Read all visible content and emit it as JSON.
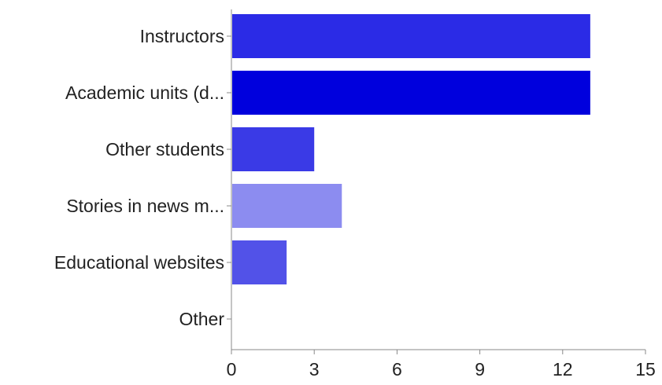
{
  "chart_data": {
    "type": "bar",
    "orientation": "horizontal",
    "title": "",
    "xlabel": "",
    "ylabel": "",
    "categories": [
      "Instructors",
      "Academic units (d...",
      "Other students",
      "Stories in news m...",
      "Educational websites",
      "Other"
    ],
    "values": [
      13,
      13,
      3,
      4,
      2,
      0
    ],
    "bar_colors": [
      "#2b2be6",
      "#0000dd",
      "#3a3ae6",
      "#8c8cf0",
      "#5252e8",
      "#2b2be6"
    ],
    "xlim": [
      0,
      15
    ],
    "x_ticks": [
      0,
      3,
      6,
      9,
      12,
      15
    ],
    "grid": false,
    "legend": "none"
  }
}
